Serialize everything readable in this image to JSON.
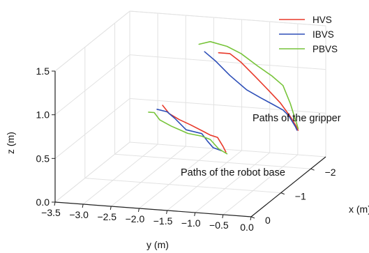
{
  "chart_data": {
    "type": "line",
    "projection": "3d",
    "xlabel": "x (m)",
    "ylabel": "y (m)",
    "zlabel": "z (m)",
    "xlim": [
      0,
      -2.5
    ],
    "ylim": [
      -3.5,
      0
    ],
    "zlim": [
      0,
      1.5
    ],
    "x_ticks": [
      "0",
      "−1",
      "−2"
    ],
    "y_ticks": [
      "−3.5",
      "−3.0",
      "−2.5",
      "−2.0",
      "−1.5",
      "−1.0",
      "−0.5",
      "0.0"
    ],
    "z_ticks": [
      "0.0",
      "0.5",
      "1.0",
      "1.5"
    ],
    "grid": true,
    "legend_position": "top-right",
    "legend": [
      "HVS",
      "IBVS",
      "PBVS"
    ],
    "annotations": [
      "Paths of the gripper",
      "Paths of the robot base"
    ],
    "series": [
      {
        "name": "HVS",
        "color": "#e8392a",
        "points": [
          [
            -2.1,
            -1.7,
            1.22
          ],
          [
            -2.1,
            -1.5,
            1.22
          ],
          [
            -2.1,
            -1.3,
            1.13
          ],
          [
            -2.1,
            -1.05,
            0.98
          ],
          [
            -2.1,
            -0.82,
            0.84
          ],
          [
            -2.1,
            -0.6,
            0.7
          ],
          [
            -2.1,
            -0.42,
            0.55
          ],
          [
            -2.1,
            -0.32,
            0.45
          ],
          [
            -2.1,
            -0.28,
            0.4
          ],
          null,
          [
            -2.1,
            -2.7,
            0.57
          ],
          [
            -2.1,
            -2.58,
            0.48
          ],
          [
            -2.1,
            -2.4,
            0.42
          ],
          [
            -2.1,
            -2.2,
            0.37
          ],
          [
            -2.1,
            -1.95,
            0.3
          ],
          [
            -2.1,
            -1.85,
            0.27
          ],
          [
            -2.1,
            -1.72,
            0.25
          ],
          [
            -2.1,
            -1.62,
            0.15
          ],
          [
            -2.1,
            -1.57,
            0.09
          ]
        ]
      },
      {
        "name": "IBVS",
        "color": "#2e4fb8",
        "points": [
          [
            -2.1,
            -1.95,
            1.22
          ],
          [
            -2.1,
            -1.75,
            1.12
          ],
          [
            -2.1,
            -1.5,
            0.97
          ],
          [
            -2.1,
            -1.2,
            0.82
          ],
          [
            -2.1,
            -0.95,
            0.74
          ],
          [
            -2.1,
            -0.75,
            0.68
          ],
          [
            -2.1,
            -0.55,
            0.62
          ],
          [
            -2.1,
            -0.45,
            0.56
          ],
          [
            -2.1,
            -0.33,
            0.44
          ],
          [
            -2.1,
            -0.3,
            0.4
          ],
          null,
          [
            -2.1,
            -2.8,
            0.52
          ],
          [
            -2.1,
            -2.62,
            0.5
          ],
          [
            -2.1,
            -2.48,
            0.43
          ],
          [
            -2.1,
            -2.28,
            0.31
          ],
          [
            -2.1,
            -2.0,
            0.28
          ],
          [
            -2.1,
            -1.9,
            0.2
          ],
          [
            -2.1,
            -1.8,
            0.13
          ],
          [
            -2.1,
            -1.65,
            0.1
          ]
        ]
      },
      {
        "name": "PBVS",
        "color": "#77c43a",
        "points": [
          [
            -2.1,
            -2.05,
            1.3
          ],
          [
            -2.1,
            -1.85,
            1.34
          ],
          [
            -2.1,
            -1.55,
            1.3
          ],
          [
            -2.1,
            -1.3,
            1.23
          ],
          [
            -2.1,
            -1.0,
            1.1
          ],
          [
            -2.1,
            -0.75,
            1.0
          ],
          [
            -2.1,
            -0.55,
            0.9
          ],
          [
            -2.1,
            -0.42,
            0.7
          ],
          [
            -2.1,
            -0.33,
            0.52
          ],
          [
            -2.1,
            -0.28,
            0.42
          ],
          null,
          [
            -2.1,
            -2.95,
            0.48
          ],
          [
            -2.1,
            -2.85,
            0.48
          ],
          [
            -2.1,
            -2.75,
            0.4
          ],
          [
            -2.1,
            -2.55,
            0.34
          ],
          [
            -2.1,
            -2.25,
            0.27
          ],
          [
            -2.1,
            -2.0,
            0.25
          ],
          [
            -2.1,
            -1.85,
            0.22
          ],
          [
            -2.1,
            -1.7,
            0.12
          ],
          [
            -2.1,
            -1.55,
            0.07
          ]
        ]
      }
    ]
  }
}
